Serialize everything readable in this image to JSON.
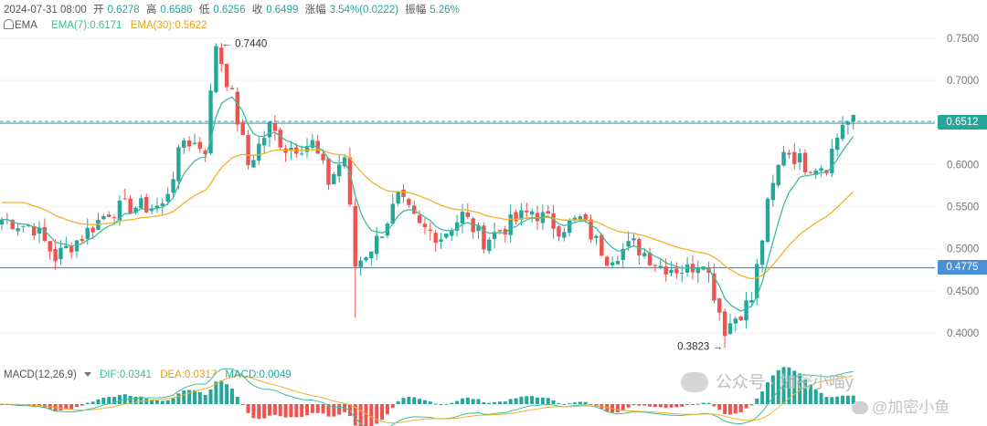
{
  "header": {
    "datetime": "2024-07-31 08:00",
    "open_label": "开",
    "open": "0.6278",
    "high_label": "高",
    "high": "0.6586",
    "low_label": "低",
    "low": "0.6256",
    "close_label": "收",
    "close": "0.6499",
    "change_label": "涨幅",
    "change": "3.54%(0.0222)",
    "amplitude_label": "振幅",
    "amplitude": "5.26%"
  },
  "ema_legend": {
    "name": "EMA",
    "ema7": "EMA(7):0.6171",
    "ema30": "EMA(30):0.5622"
  },
  "macd_legend": {
    "name": "MACD(12,26,9)",
    "dif": "DIF:0.0341",
    "dea": "DEA:0.0317",
    "macd": "MACD:0.0049"
  },
  "price_tags": {
    "upper": "0.6512",
    "lower": "0.4775"
  },
  "annotations": {
    "high_text": "← 0.7440",
    "low_text": "0.3823 →"
  },
  "watermark": {
    "text1": "公众号 · 加密小喵y",
    "text2": "@加密小鱼"
  },
  "colors": {
    "up": "#26a69a",
    "down": "#ef5350",
    "ema7": "#3dbd9a",
    "ema30": "#f0b429",
    "upper_line": "#26a69a",
    "upper_dash": "#3b8ed8",
    "lower_line": "#4a90d9",
    "dif": "#3dbd9a",
    "dea": "#f0b429"
  },
  "chart_data": {
    "type": "candlestick",
    "yaxis": {
      "ticks": [
        "0.7500",
        "0.7000",
        "0.6500",
        "0.6000",
        "0.5500",
        "0.5000",
        "0.4500",
        "0.4000"
      ],
      "ylim": [
        0.385,
        0.765
      ]
    },
    "horizontal_lines": [
      0.6512,
      0.4775
    ],
    "n_candles": 160,
    "anchors": [
      [
        0,
        0.535
      ],
      [
        6,
        0.525
      ],
      [
        10,
        0.49
      ],
      [
        15,
        0.515
      ],
      [
        20,
        0.545
      ],
      [
        24,
        0.55
      ],
      [
        30,
        0.55
      ],
      [
        34,
        0.63
      ],
      [
        38,
        0.62
      ],
      [
        40,
        0.744
      ],
      [
        43,
        0.68
      ],
      [
        46,
        0.6
      ],
      [
        50,
        0.645
      ],
      [
        53,
        0.62
      ],
      [
        58,
        0.625
      ],
      [
        61,
        0.58
      ],
      [
        64,
        0.61
      ],
      [
        66,
        0.48
      ],
      [
        70,
        0.51
      ],
      [
        74,
        0.56
      ],
      [
        78,
        0.525
      ],
      [
        82,
        0.515
      ],
      [
        86,
        0.54
      ],
      [
        90,
        0.51
      ],
      [
        95,
        0.53
      ],
      [
        99,
        0.545
      ],
      [
        104,
        0.525
      ],
      [
        108,
        0.535
      ],
      [
        113,
        0.49
      ],
      [
        118,
        0.505
      ],
      [
        123,
        0.48
      ],
      [
        128,
        0.475
      ],
      [
        131,
        0.49
      ],
      [
        135,
        0.405
      ],
      [
        140,
        0.44
      ],
      [
        143,
        0.55
      ],
      [
        146,
        0.62
      ],
      [
        150,
        0.6
      ],
      [
        154,
        0.6
      ],
      [
        157,
        0.6499
      ]
    ],
    "special_lows": {
      "135": 0.3823
    },
    "ema_periods": [
      7,
      30
    ],
    "last_values": {
      "ema7": 0.6171,
      "ema30": 0.5622
    }
  }
}
